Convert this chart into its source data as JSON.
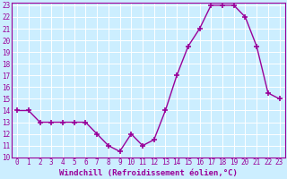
{
  "hours": [
    0,
    1,
    2,
    3,
    4,
    5,
    6,
    7,
    8,
    9,
    10,
    11,
    12,
    13,
    14,
    15,
    16,
    17,
    18,
    19,
    20,
    21,
    22,
    23
  ],
  "values": [
    14,
    14,
    13,
    13,
    13,
    13,
    13,
    12,
    11,
    10.5,
    12,
    11,
    11.5,
    14,
    17,
    19.5,
    21,
    23,
    23,
    23,
    22,
    19.5,
    15.5,
    15
  ],
  "line_color": "#990099",
  "marker": "+",
  "marker_size": 4,
  "marker_lw": 1.2,
  "line_width": 1.0,
  "bg_color": "#cceeff",
  "grid_color": "#b0dde8",
  "xlabel": "Windchill (Refroidissement éolien,°C)",
  "ylim": [
    10,
    23
  ],
  "xlim": [
    -0.5,
    23.5
  ],
  "yticks": [
    10,
    11,
    12,
    13,
    14,
    15,
    16,
    17,
    18,
    19,
    20,
    21,
    22,
    23
  ],
  "xticks": [
    0,
    1,
    2,
    3,
    4,
    5,
    6,
    7,
    8,
    9,
    10,
    11,
    12,
    13,
    14,
    15,
    16,
    17,
    18,
    19,
    20,
    21,
    22,
    23
  ],
  "tick_fontsize": 5.5,
  "xlabel_fontsize": 6.5,
  "tick_color": "#990099",
  "label_color": "#990099",
  "spine_color": "#990099"
}
